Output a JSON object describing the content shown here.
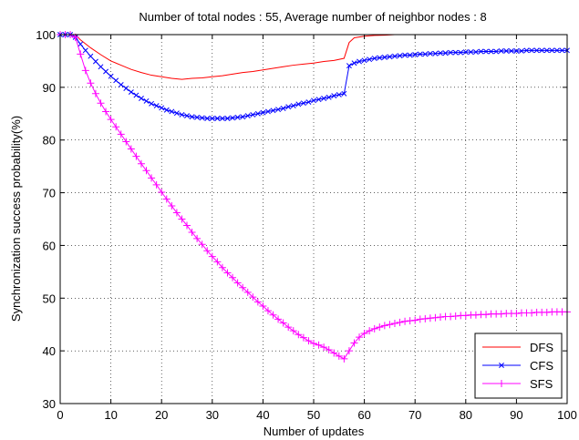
{
  "chart_data": {
    "type": "line",
    "title": "Number of total nodes : 55, Average number of neighbor nodes : 8",
    "xlabel": "Number of updates",
    "ylabel": "Synchronization success probability(%)",
    "xlim": [
      0,
      100
    ],
    "ylim": [
      30,
      100
    ],
    "xticks": [
      "0",
      "10",
      "20",
      "30",
      "40",
      "50",
      "60",
      "70",
      "80",
      "90",
      "100"
    ],
    "yticks": [
      "30",
      "40",
      "50",
      "60",
      "70",
      "80",
      "90",
      "100"
    ],
    "grid": true,
    "legend_position": "bottom-right",
    "series": [
      {
        "name": "DFS",
        "color": "#ff0000",
        "marker": "none",
        "x": [
          0,
          1,
          2,
          3,
          4,
          6,
          8,
          10,
          12,
          14,
          16,
          18,
          20,
          22,
          24,
          26,
          28,
          30,
          32,
          34,
          36,
          38,
          40,
          42,
          44,
          46,
          48,
          50,
          52,
          54,
          56,
          57,
          58,
          60,
          62,
          64,
          66,
          70,
          75,
          80,
          85,
          90,
          95,
          100
        ],
        "y": [
          100,
          100,
          100,
          100,
          99,
          97.5,
          96.2,
          95.0,
          94.2,
          93.4,
          92.8,
          92.3,
          92.0,
          91.7,
          91.5,
          91.7,
          91.8,
          92.0,
          92.2,
          92.5,
          92.8,
          93.0,
          93.3,
          93.6,
          93.9,
          94.2,
          94.4,
          94.6,
          94.9,
          95.1,
          95.5,
          98.5,
          99.4,
          99.7,
          99.85,
          99.9,
          100,
          100,
          100,
          100,
          100,
          100,
          100,
          100
        ]
      },
      {
        "name": "CFS",
        "color": "#0000ff",
        "marker": "x",
        "x": [
          0,
          1,
          2,
          3,
          4,
          5,
          6,
          7,
          8,
          9,
          10,
          11,
          12,
          13,
          14,
          15,
          16,
          17,
          18,
          19,
          20,
          21,
          22,
          23,
          24,
          25,
          26,
          27,
          28,
          29,
          30,
          31,
          32,
          33,
          34,
          35,
          36,
          37,
          38,
          39,
          40,
          41,
          42,
          43,
          44,
          45,
          46,
          47,
          48,
          49,
          50,
          51,
          52,
          53,
          54,
          55,
          56,
          57,
          58,
          59,
          60,
          61,
          62,
          63,
          64,
          65,
          66,
          67,
          68,
          69,
          70,
          71,
          72,
          73,
          74,
          75,
          76,
          77,
          78,
          79,
          80,
          81,
          82,
          83,
          84,
          85,
          86,
          87,
          88,
          89,
          90,
          91,
          92,
          93,
          94,
          95,
          96,
          97,
          98,
          99,
          100
        ],
        "y": [
          100,
          100,
          100,
          99.5,
          98.2,
          97,
          95.9,
          94.9,
          93.9,
          93,
          92.1,
          91.3,
          90.5,
          89.8,
          89.1,
          88.5,
          87.9,
          87.4,
          86.9,
          86.5,
          86.1,
          85.7,
          85.4,
          85.1,
          84.8,
          84.6,
          84.4,
          84.3,
          84.2,
          84.1,
          84.1,
          84.1,
          84.1,
          84.1,
          84.2,
          84.3,
          84.4,
          84.6,
          84.8,
          85,
          85.2,
          85.4,
          85.6,
          85.8,
          86,
          86.3,
          86.5,
          86.8,
          87,
          87.2,
          87.5,
          87.7,
          87.9,
          88.1,
          88.4,
          88.6,
          88.8,
          94.1,
          94.6,
          94.9,
          95.1,
          95.3,
          95.5,
          95.6,
          95.7,
          95.8,
          95.9,
          96,
          96.1,
          96.1,
          96.2,
          96.3,
          96.3,
          96.4,
          96.4,
          96.5,
          96.5,
          96.6,
          96.6,
          96.6,
          96.7,
          96.7,
          96.7,
          96.8,
          96.8,
          96.8,
          96.8,
          96.9,
          96.9,
          96.9,
          96.9,
          96.9,
          97,
          97,
          97,
          97,
          97,
          97,
          97,
          97,
          97
        ]
      },
      {
        "name": "SFS",
        "color": "#ff00ff",
        "marker": "+",
        "x": [
          0,
          1,
          2,
          3,
          4,
          5,
          6,
          7,
          8,
          9,
          10,
          11,
          12,
          13,
          14,
          15,
          16,
          17,
          18,
          19,
          20,
          21,
          22,
          23,
          24,
          25,
          26,
          27,
          28,
          29,
          30,
          31,
          32,
          33,
          34,
          35,
          36,
          37,
          38,
          39,
          40,
          41,
          42,
          43,
          44,
          45,
          46,
          47,
          48,
          49,
          50,
          51,
          52,
          53,
          54,
          55,
          56,
          57,
          58,
          59,
          60,
          61,
          62,
          63,
          64,
          65,
          66,
          67,
          68,
          69,
          70,
          71,
          72,
          73,
          74,
          75,
          76,
          77,
          78,
          79,
          80,
          81,
          82,
          83,
          84,
          85,
          86,
          87,
          88,
          89,
          90,
          91,
          92,
          93,
          94,
          95,
          96,
          97,
          98,
          99,
          100
        ],
        "y": [
          100,
          100,
          100,
          99.5,
          96.3,
          93.2,
          90.8,
          88.8,
          87,
          85.4,
          83.9,
          82.5,
          81.1,
          79.7,
          78.3,
          76.9,
          75.5,
          74.2,
          72.8,
          71.5,
          70.1,
          68.8,
          67.5,
          66.2,
          65,
          63.8,
          62.5,
          61.3,
          60.2,
          59,
          57.9,
          56.9,
          55.8,
          54.8,
          53.9,
          52.9,
          52,
          51.1,
          50.2,
          49.3,
          48.5,
          47.6,
          46.8,
          46,
          45.3,
          44.5,
          43.8,
          43.1,
          42.5,
          41.9,
          41.4,
          41.1,
          40.7,
          40.2,
          39.6,
          39,
          38.5,
          40,
          41.5,
          42.6,
          43.3,
          43.8,
          44.2,
          44.5,
          44.8,
          45,
          45.2,
          45.4,
          45.6,
          45.7,
          45.8,
          46,
          46.1,
          46.2,
          46.3,
          46.4,
          46.5,
          46.5,
          46.6,
          46.7,
          46.7,
          46.8,
          46.8,
          46.9,
          46.9,
          47,
          47,
          47,
          47.1,
          47.1,
          47.1,
          47.2,
          47.2,
          47.2,
          47.3,
          47.3,
          47.3,
          47.4,
          47.4,
          47.4,
          47.4
        ]
      }
    ]
  }
}
